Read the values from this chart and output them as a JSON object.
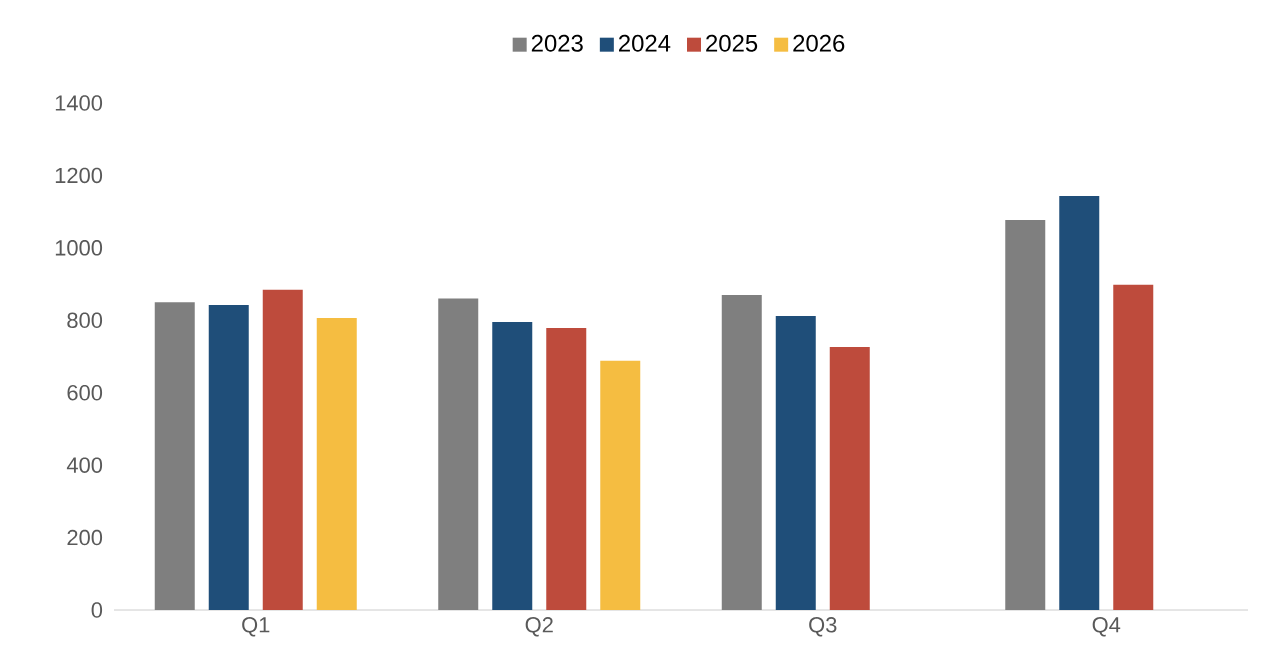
{
  "chart_data": {
    "type": "bar",
    "categories": [
      "Q1",
      "Q2",
      "Q3",
      "Q4"
    ],
    "series": [
      {
        "name": "2023",
        "color": "#7f7f7f",
        "values": [
          850,
          860,
          870,
          1077
        ]
      },
      {
        "name": "2024",
        "color": "#1f4e79",
        "values": [
          842,
          795,
          812,
          1143
        ]
      },
      {
        "name": "2025",
        "color": "#be4b3c",
        "values": [
          884,
          779,
          726,
          898
        ]
      },
      {
        "name": "2026",
        "color": "#f5bd41",
        "values": [
          806,
          688,
          null,
          null
        ]
      }
    ],
    "ylim": [
      0,
      1400
    ],
    "yticks": [
      0,
      200,
      400,
      600,
      800,
      1000,
      1200,
      1400
    ],
    "legend": "top"
  }
}
